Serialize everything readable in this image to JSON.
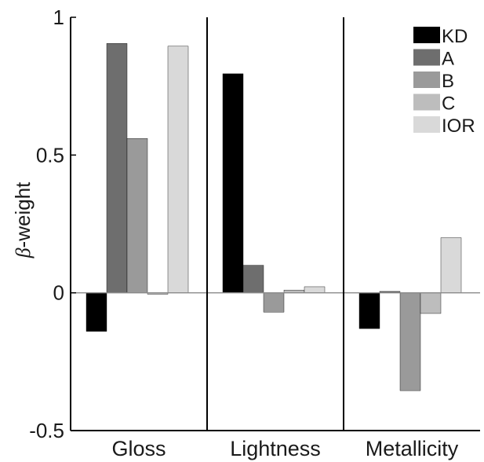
{
  "chart_data": {
    "type": "bar",
    "categories": [
      "Gloss",
      "Lightness",
      "Metallicity"
    ],
    "series": [
      {
        "name": "KD",
        "color": "#000000",
        "values": [
          -0.14,
          0.795,
          -0.13
        ]
      },
      {
        "name": "A",
        "color": "#6e6e6e",
        "values": [
          0.905,
          0.1,
          0.005
        ]
      },
      {
        "name": "B",
        "color": "#9a9a9a",
        "values": [
          0.56,
          -0.07,
          -0.355
        ]
      },
      {
        "name": "C",
        "color": "#bdbdbd",
        "values": [
          -0.005,
          0.01,
          -0.075
        ]
      },
      {
        "name": "IOR",
        "color": "#d9d9d9",
        "values": [
          0.895,
          0.022,
          0.2
        ]
      }
    ],
    "ylabel_symbol": "β",
    "ylabel_text": "-weight",
    "ylim": [
      -0.5,
      1.0
    ],
    "yticks": [
      -0.5,
      0,
      0.5,
      1
    ],
    "ytick_labels": [
      "-0.5",
      "0",
      "0.5",
      "1"
    ],
    "grid": false,
    "legend_position": "top-right"
  }
}
